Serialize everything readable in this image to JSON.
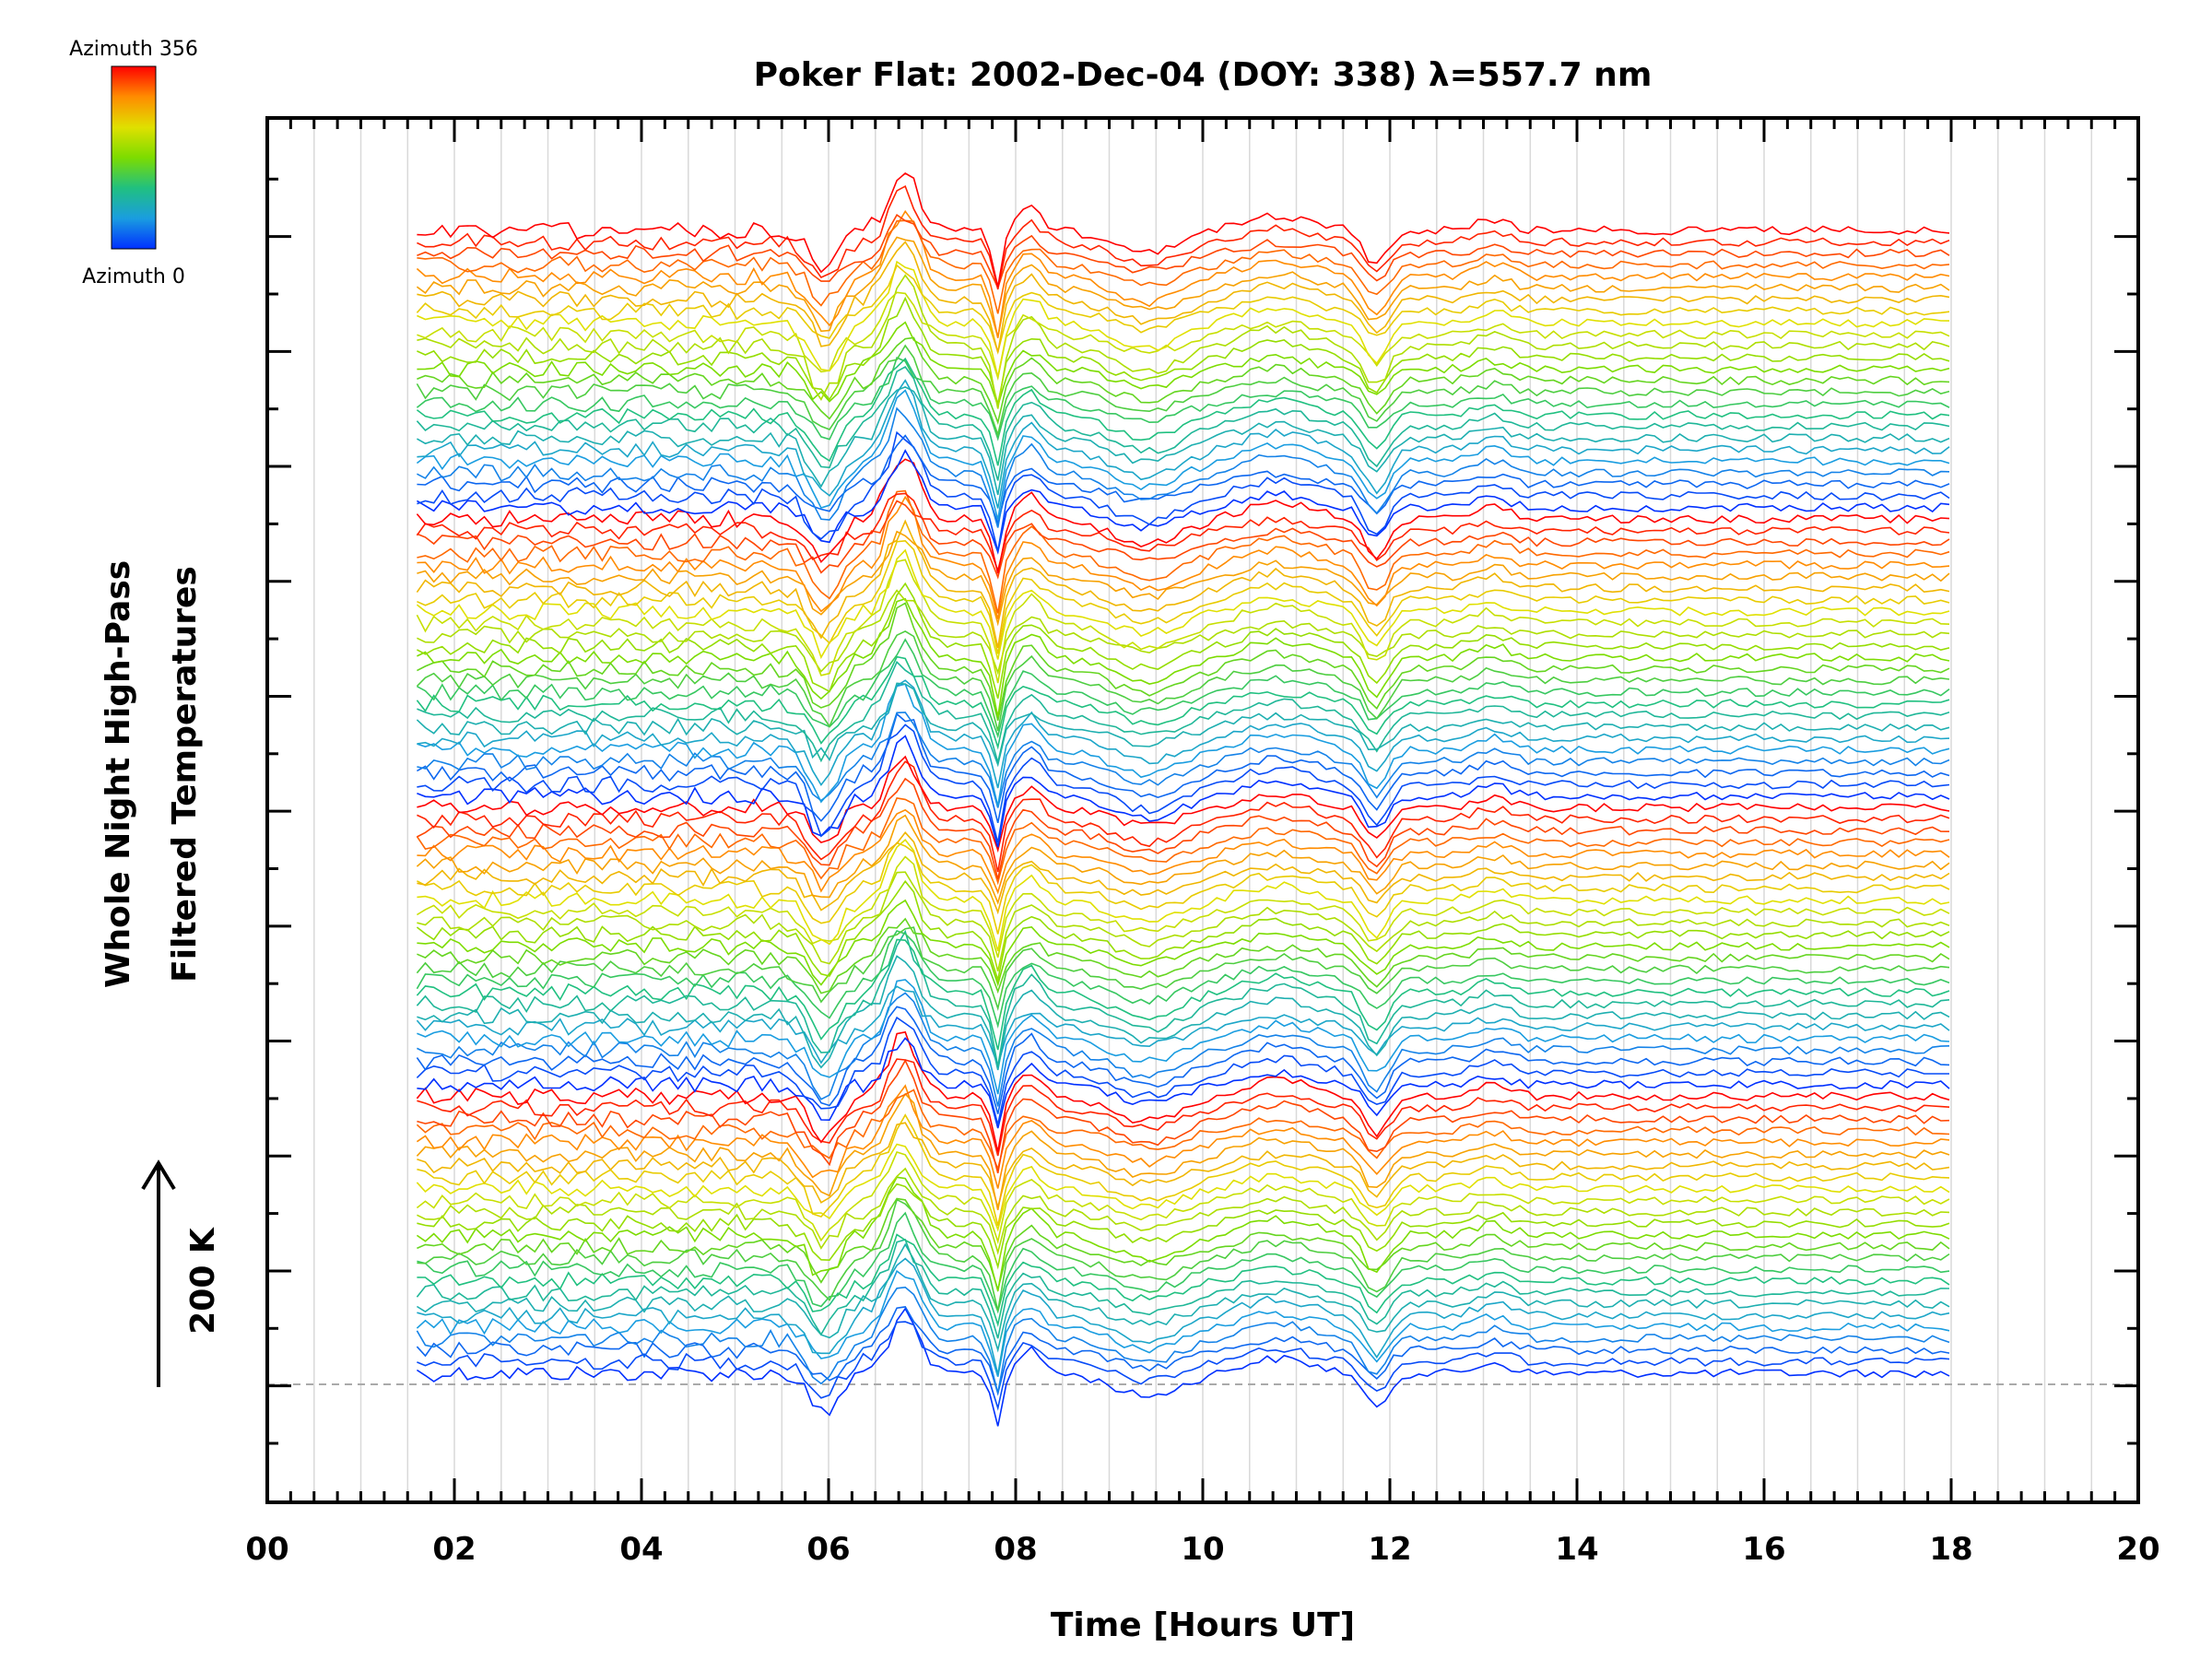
{
  "chart_data": {
    "type": "line",
    "title": "Poker Flat: 2002-Dec-04 (DOY: 338) λ=557.7 nm",
    "xlabel": "Time [Hours UT]",
    "ylabel_line1": "Whole Night High-Pass",
    "ylabel_line2": "Filtered Temperatures",
    "scale_label": "200 K",
    "xlim": [
      0,
      20
    ],
    "x_ticks": [
      "00",
      "02",
      "04",
      "06",
      "08",
      "10",
      "12",
      "14",
      "16",
      "18",
      "20"
    ],
    "x_tick_values": [
      0,
      2,
      4,
      6,
      8,
      10,
      12,
      14,
      16,
      18,
      20
    ],
    "data_time_range": [
      1.6,
      18.0
    ],
    "series_count": 100,
    "colorbar": {
      "top_label": "Azimuth 356",
      "bottom_label": "Azimuth 0",
      "colors": [
        "#ff0000",
        "#ff8c00",
        "#e0e000",
        "#7cdc00",
        "#20c080",
        "#1a9de0",
        "#0030ff"
      ]
    },
    "grid": true,
    "vertical_grid_lines": true,
    "color_by_azimuth": true,
    "common_features": [
      {
        "time": 5.95,
        "feature": "dip"
      },
      {
        "time": 6.8,
        "feature": "peak"
      },
      {
        "time": 7.8,
        "feature": "dip"
      },
      {
        "time": 8.1,
        "feature": "peak"
      },
      {
        "time": 9.4,
        "feature": "dip"
      },
      {
        "time": 10.8,
        "feature": "peak"
      },
      {
        "time": 11.85,
        "feature": "dip"
      },
      {
        "time": 13.1,
        "feature": "peak"
      }
    ]
  }
}
